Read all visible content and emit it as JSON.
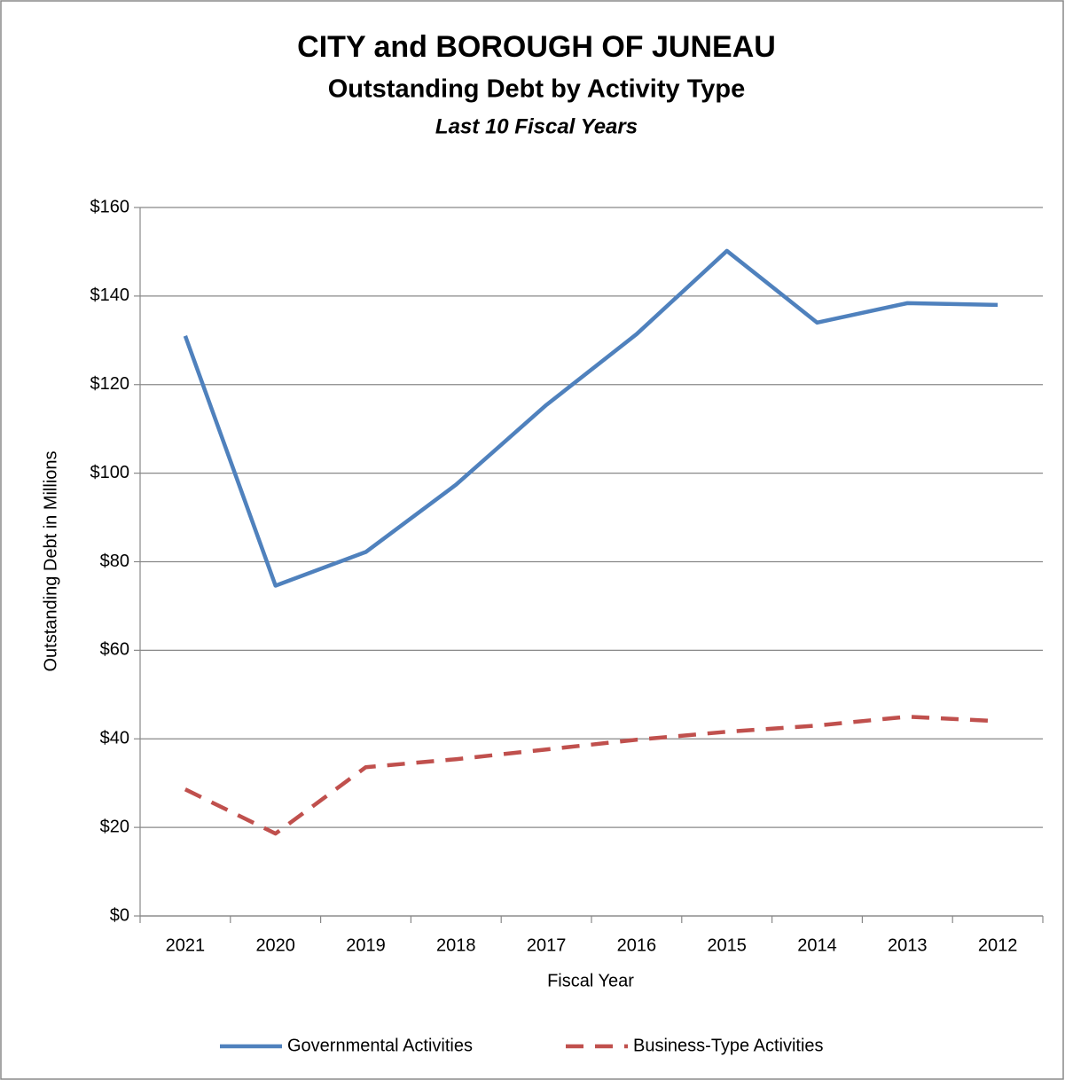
{
  "chart_data": {
    "type": "line",
    "title": "CITY and BOROUGH OF JUNEAU",
    "subtitle": "Outstanding Debt by Activity Type",
    "subtitle2": "Last 10 Fiscal Years",
    "x_label": "Fiscal Year",
    "y_label": "Outstanding Debt in Millions",
    "categories": [
      "2021",
      "2020",
      "2019",
      "2018",
      "2017",
      "2016",
      "2015",
      "2014",
      "2013",
      "2012"
    ],
    "series": [
      {
        "name": "Governmental Activities",
        "color": "#4f81bd",
        "dashed": false,
        "values": [
          131,
          74.6,
          82.2,
          97.4,
          115.4,
          131.4,
          150.2,
          134,
          138.4,
          138
        ]
      },
      {
        "name": "Business-Type Activities",
        "color": "#c0504d",
        "dashed": true,
        "values": [
          28.6,
          18.6,
          33.6,
          35.4,
          37.6,
          39.8,
          41.6,
          43,
          45,
          44
        ]
      }
    ],
    "ylim": [
      0,
      160
    ],
    "yticks": [
      {
        "value": 0,
        "label": "$0"
      },
      {
        "value": 20,
        "label": "$20"
      },
      {
        "value": 40,
        "label": "$40"
      },
      {
        "value": 60,
        "label": "$60"
      },
      {
        "value": 80,
        "label": "$80"
      },
      {
        "value": 100,
        "label": "$100"
      },
      {
        "value": 120,
        "label": "$120"
      },
      {
        "value": 140,
        "label": "$140"
      },
      {
        "value": 160,
        "label": "$160"
      }
    ],
    "grid": true,
    "legend": "bottom"
  }
}
